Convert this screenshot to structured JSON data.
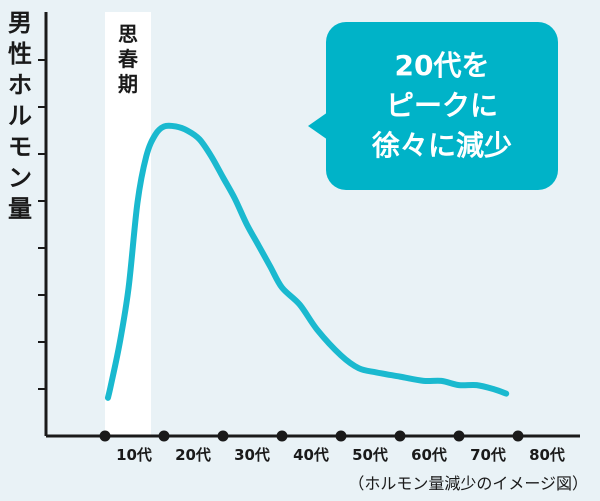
{
  "chart_data": {
    "type": "line",
    "ylabel": "男性ホルモン量",
    "title": "",
    "categories": [
      "10代",
      "20代",
      "30代",
      "40代",
      "50代",
      "60代",
      "70代",
      "80代"
    ],
    "series": [
      {
        "values": [
          [
            0.05,
            0.09
          ],
          [
            0.1,
            0.12
          ],
          [
            0.25,
            0.22
          ],
          [
            0.4,
            0.35
          ],
          [
            0.55,
            0.55
          ],
          [
            0.7,
            0.66
          ],
          [
            0.85,
            0.71
          ],
          [
            1.0,
            0.73
          ],
          [
            1.2,
            0.73
          ],
          [
            1.4,
            0.72
          ],
          [
            1.6,
            0.7
          ],
          [
            1.8,
            0.66
          ],
          [
            2.0,
            0.61
          ],
          [
            2.2,
            0.56
          ],
          [
            2.4,
            0.5
          ],
          [
            2.6,
            0.45
          ],
          [
            2.8,
            0.4
          ],
          [
            3.0,
            0.35
          ],
          [
            3.3,
            0.31
          ],
          [
            3.6,
            0.25
          ],
          [
            4.0,
            0.19
          ],
          [
            4.3,
            0.16
          ],
          [
            4.6,
            0.15
          ],
          [
            5.0,
            0.14
          ],
          [
            5.4,
            0.13
          ],
          [
            5.7,
            0.13
          ],
          [
            6.0,
            0.12
          ],
          [
            6.3,
            0.12
          ],
          [
            6.6,
            0.11
          ],
          [
            6.8,
            0.1
          ]
        ]
      }
    ],
    "color": "#1ab9cf",
    "band": {
      "label": "思春期",
      "x_range": [
        0.0,
        0.8
      ]
    },
    "annotation": [
      "20代を",
      "ピークに",
      "徐々に減少"
    ],
    "footnote": "（ホルモン量減少のイメージ図）",
    "grid": false
  }
}
